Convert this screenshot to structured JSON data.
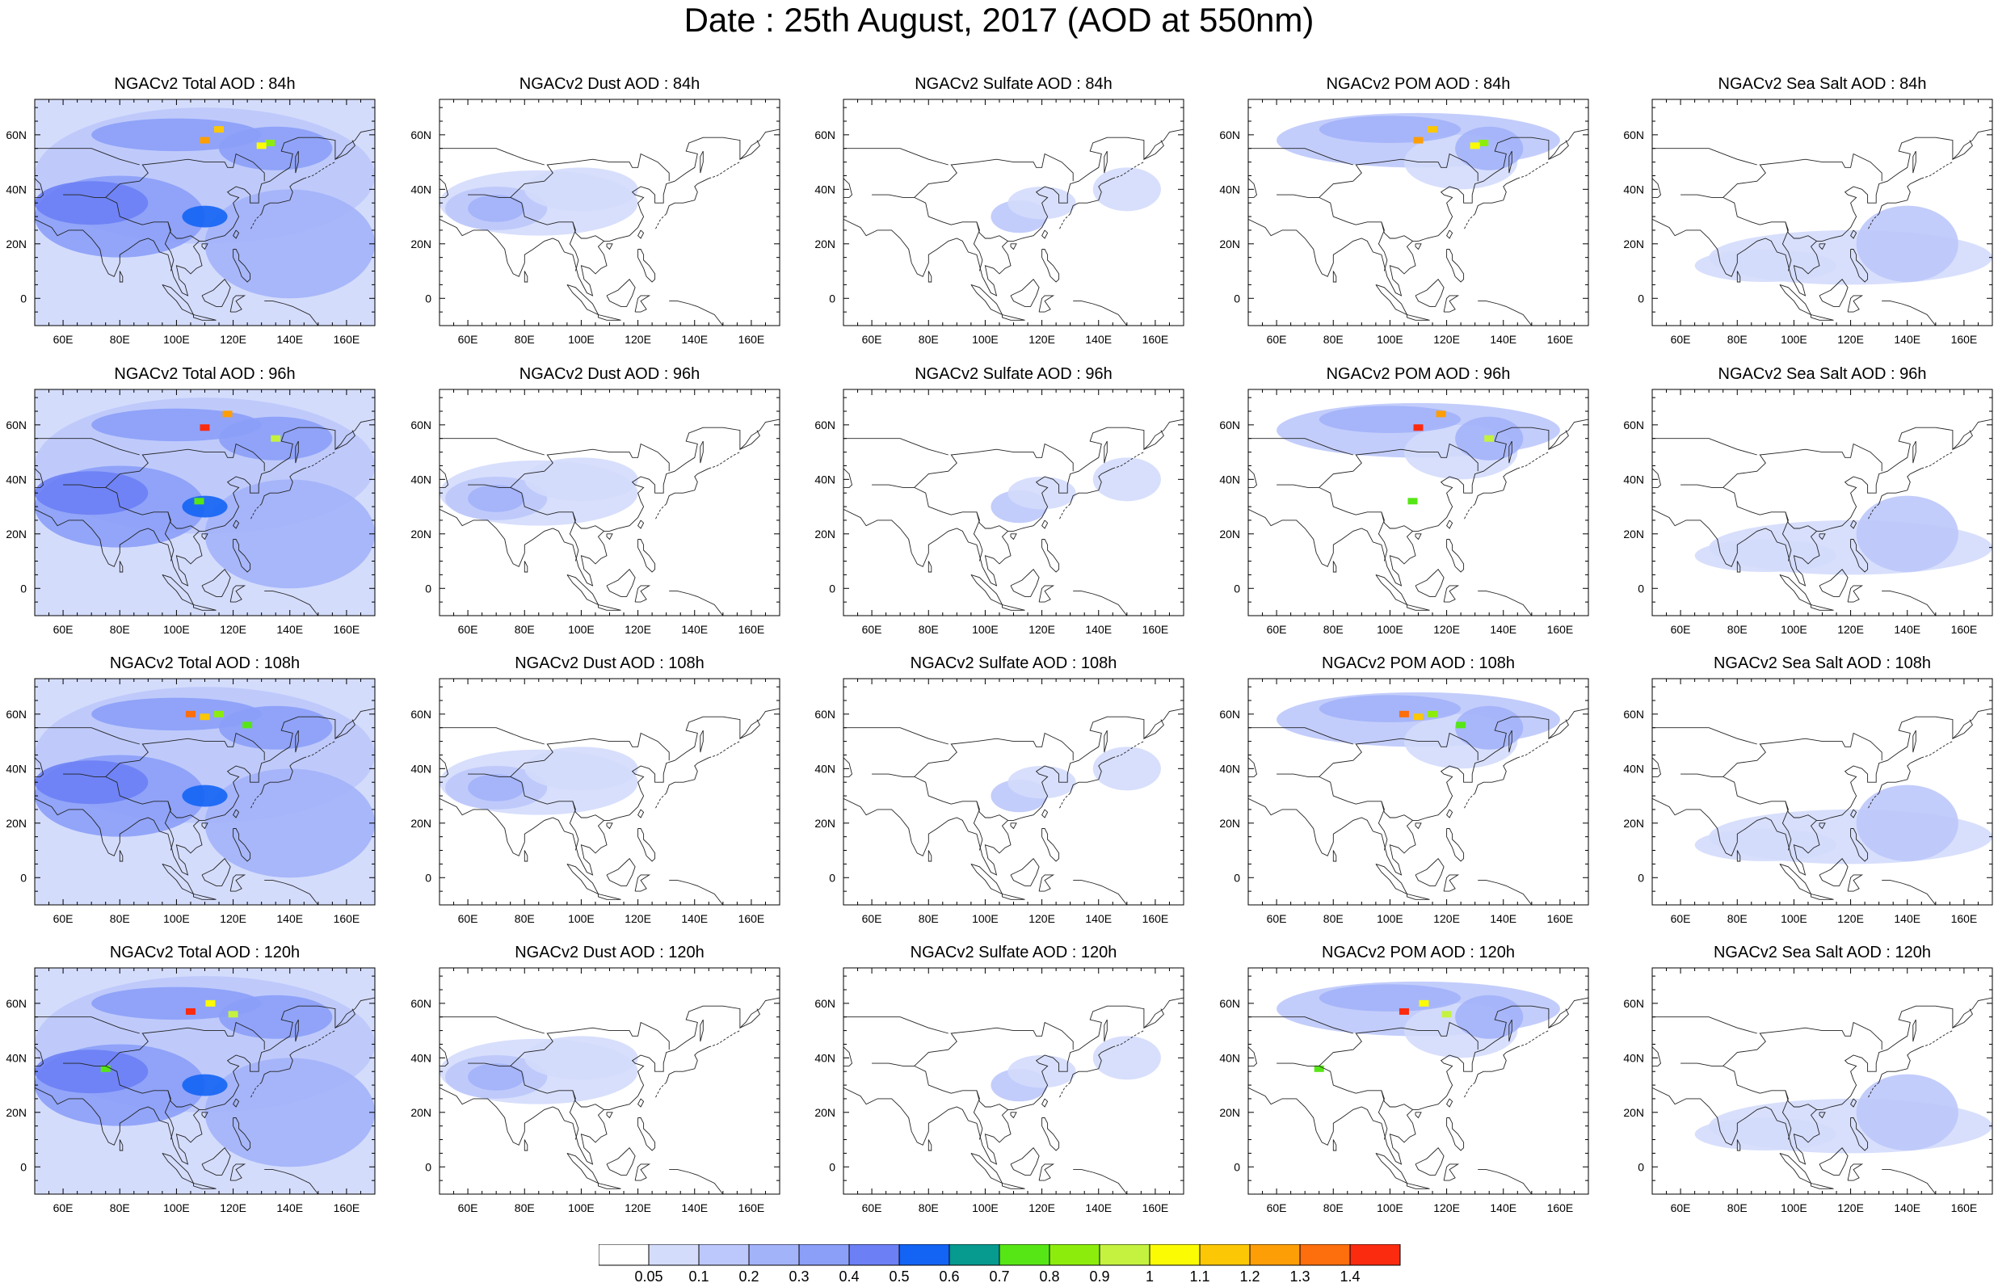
{
  "title": "Date : 25th August, 2017 (AOD at 550nm)",
  "lon_ticks": [
    "60E",
    "80E",
    "100E",
    "120E",
    "140E",
    "160E"
  ],
  "lat_ticks": [
    "60N",
    "40N",
    "20N",
    "0"
  ],
  "rows": [
    {
      "hour": "84h",
      "titles": [
        "NGACv2 Total AOD : 84h",
        "NGACv2 Dust AOD : 84h",
        "NGACv2 Sulfate AOD : 84h",
        "NGACv2 POM AOD : 84h",
        "NGACv2 Sea Salt AOD : 84h"
      ]
    },
    {
      "hour": "96h",
      "titles": [
        "NGACv2 Total AOD : 96h",
        "NGACv2 Dust AOD : 96h",
        "NGACv2 Sulfate AOD : 96h",
        "NGACv2 POM AOD : 96h",
        "NGACv2 Sea Salt AOD : 96h"
      ]
    },
    {
      "hour": "108h",
      "titles": [
        "NGACv2 Total AOD : 108h",
        "NGACv2 Dust AOD : 108h",
        "NGACv2 Sulfate AOD : 108h",
        "NGACv2 POM AOD : 108h",
        "NGACv2 Sea Salt AOD : 108h"
      ]
    },
    {
      "hour": "120h",
      "titles": [
        "NGACv2 Total AOD : 120h",
        "NGACv2 Dust AOD : 120h",
        "NGACv2 Sulfate AOD : 120h",
        "NGACv2 POM AOD : 120h",
        "NGACv2 Sea Salt  AOD : 120h"
      ]
    }
  ],
  "colorbar": {
    "labels": [
      "0.05",
      "0.1",
      "0.2",
      "0.3",
      "0.4",
      "0.5",
      "0.6",
      "0.7",
      "0.8",
      "0.9",
      "1",
      "1.1",
      "1.2",
      "1.3",
      "1.4"
    ],
    "colors": [
      "#ffffff",
      "#d4dcfc",
      "#bcc8fb",
      "#a3b3fa",
      "#8b9ef8",
      "#6c7ff5",
      "#1364f4",
      "#079a8f",
      "#57e615",
      "#8ced0c",
      "#c4f23f",
      "#fbfb04",
      "#fcc704",
      "#fd9e06",
      "#fd6e0c",
      "#fb2b10"
    ]
  }
}
